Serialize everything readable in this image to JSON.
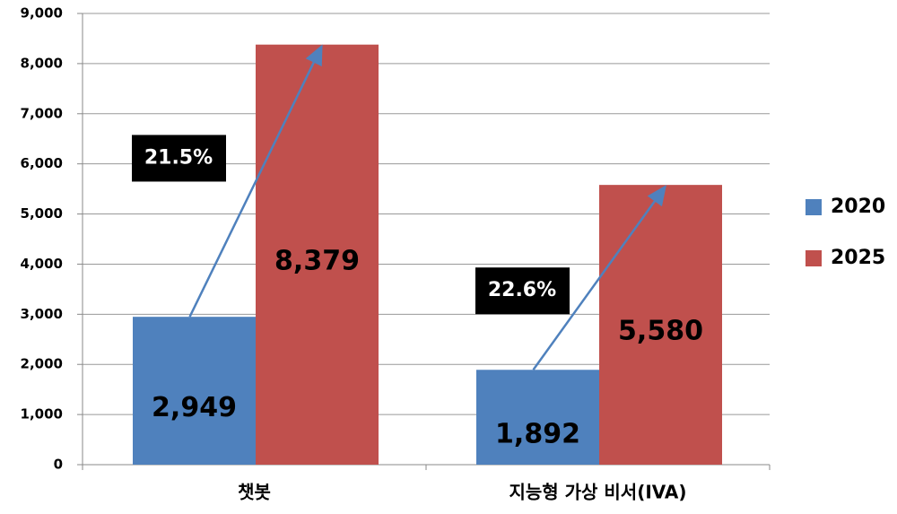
{
  "chart_data": {
    "type": "bar",
    "categories": [
      "챗봇",
      "지능형 가상 비서(IVA)"
    ],
    "series": [
      {
        "name": "2020",
        "color": "#4f81bd",
        "values": [
          2949,
          1892
        ],
        "value_labels": [
          "2,949",
          "1,892"
        ]
      },
      {
        "name": "2025",
        "color": "#c0504d",
        "values": [
          8379,
          5580
        ],
        "value_labels": [
          "8,379",
          "5,580"
        ]
      }
    ],
    "ylim": [
      0,
      9000
    ],
    "yticks": [
      0,
      {
        "value": 1000,
        "label": "1,000"
      },
      {
        "value": 2000,
        "label": "2,000"
      },
      {
        "value": 3000,
        "label": "3,000"
      },
      {
        "value": 4000,
        "label": "4,000"
      },
      {
        "value": 5000,
        "label": "5,000"
      },
      {
        "value": 6000,
        "label": "6,000"
      },
      {
        "value": 7000,
        "label": "7,000"
      },
      {
        "value": 8000,
        "label": "8,000"
      },
      {
        "value": 9000,
        "label": "9,000"
      }
    ],
    "grid": true,
    "legend": "right",
    "annotations": [
      "21.5%",
      "22.6%"
    ]
  }
}
